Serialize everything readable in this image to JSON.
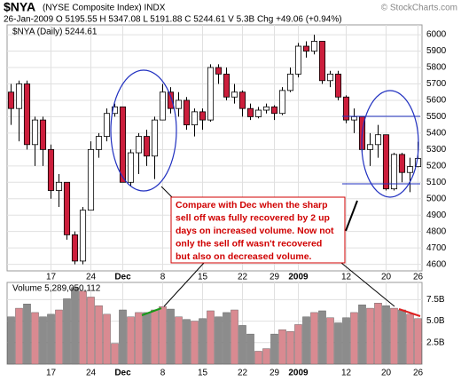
{
  "chart_data": [
    {
      "type": "candlestick",
      "title": "$NYA",
      "subtitle": "(NYSE Composite Index) INDX",
      "credit": "© StockCharts.com",
      "quote_line": "26-Jan-2009  O 5195.55  H 5347.08  L 5191.88  C 5244.61  V 5.3B  Chg +49.06 (+0.94%)",
      "legend_label": "$NYA (Daily) 5244.61",
      "annotation": [
        "Compare with Dec when the sharp",
        "sell off was fully recovered by 2 up",
        "days on increased volume. Now not",
        "only the sell off wasn't recovered",
        "but also on decreased volume."
      ],
      "up_color": "#ffffff",
      "down_color": "#cc1e3c",
      "grid": true,
      "categories": [
        null,
        null,
        null,
        null,
        null,
        "17",
        null,
        null,
        null,
        null,
        "24",
        null,
        null,
        null,
        "Dec",
        null,
        null,
        null,
        null,
        "8",
        null,
        null,
        null,
        null,
        "15",
        null,
        null,
        null,
        null,
        "22",
        null,
        null,
        null,
        "29",
        null,
        null,
        "2009",
        null,
        null,
        null,
        null,
        null,
        "12",
        null,
        null,
        null,
        null,
        "20",
        null,
        null,
        null,
        "26"
      ],
      "open": [
        5650,
        5550,
        5700,
        5330,
        5480,
        5300,
        5050,
        5100,
        4780,
        4620,
        4930,
        5300,
        5380,
        5520,
        5560,
        5100,
        5280,
        5380,
        5260,
        5480,
        5650,
        5550,
        5600,
        5450,
        5530,
        5480,
        5800,
        5760,
        5620,
        5650,
        5550,
        5500,
        5540,
        5560,
        5520,
        5660,
        5760,
        5930,
        5900,
        5960,
        5720,
        5760,
        5620,
        5480,
        5500,
        5300,
        5330,
        5390,
        5060,
        5270,
        5160,
        5195.55
      ],
      "high": [
        5700,
        5720,
        5720,
        5500,
        5500,
        5330,
        5150,
        5100,
        4800,
        4950,
        5350,
        5400,
        5550,
        5580,
        5560,
        5300,
        5400,
        5420,
        5500,
        5700,
        5680,
        5650,
        5620,
        5550,
        5550,
        5820,
        5820,
        5800,
        5700,
        5660,
        5580,
        5560,
        5580,
        5570,
        5680,
        5800,
        5950,
        5960,
        6000,
        5960,
        5780,
        5780,
        5630,
        5550,
        5500,
        5400,
        5450,
        5390,
        5280,
        5280,
        5250,
        5347.08
      ],
      "low": [
        5450,
        5350,
        5300,
        5200,
        5200,
        5000,
        4950,
        4750,
        4600,
        4600,
        4930,
        5250,
        5350,
        5500,
        5100,
        5080,
        5150,
        5200,
        5120,
        5480,
        5520,
        5500,
        5420,
        5380,
        5420,
        5470,
        5700,
        5600,
        5580,
        5500,
        5480,
        5490,
        5520,
        5480,
        5510,
        5650,
        5740,
        5860,
        5880,
        5700,
        5680,
        5600,
        5460,
        5400,
        5280,
        5200,
        5250,
        5050,
        5050,
        5100,
        5040,
        5191.88
      ],
      "close": [
        5550,
        5700,
        5330,
        5480,
        5300,
        5050,
        5100,
        4780,
        4620,
        4930,
        5300,
        5380,
        5520,
        5560,
        5100,
        5280,
        5380,
        5260,
        5480,
        5650,
        5550,
        5600,
        5450,
        5530,
        5480,
        5800,
        5760,
        5620,
        5650,
        5550,
        5500,
        5540,
        5560,
        5520,
        5660,
        5760,
        5930,
        5900,
        5960,
        5720,
        5760,
        5620,
        5480,
        5500,
        5300,
        5330,
        5390,
        5060,
        5270,
        5160,
        5195.55,
        5244.61
      ],
      "ylim": [
        4560,
        6060
      ],
      "yticks": [
        4600,
        4700,
        4800,
        4900,
        5000,
        5100,
        5200,
        5300,
        5400,
        5500,
        5600,
        5700,
        5800,
        5900,
        6000
      ]
    },
    {
      "type": "bar",
      "title": "Volume 5,289,050,112",
      "up_color": "#d98a91",
      "down_color": "#8c8c8c",
      "grid": true,
      "categories": [
        null,
        null,
        null,
        null,
        null,
        "17",
        null,
        null,
        null,
        null,
        "24",
        null,
        null,
        null,
        "Dec",
        null,
        null,
        null,
        null,
        "8",
        null,
        null,
        null,
        null,
        "15",
        null,
        null,
        null,
        null,
        "22",
        null,
        null,
        null,
        "29",
        null,
        null,
        "2009",
        null,
        null,
        null,
        null,
        null,
        "12",
        null,
        null,
        null,
        null,
        "20",
        null,
        null,
        null,
        "26"
      ],
      "values": [
        5.5,
        6.5,
        7.0,
        6.0,
        5.5,
        5.8,
        6.3,
        7.6,
        8.9,
        8.5,
        7.8,
        6.8,
        5.8,
        2.4,
        6.3,
        5.5,
        6.0,
        6.0,
        6.3,
        6.7,
        6.4,
        5.5,
        5.2,
        5.0,
        5.3,
        6.2,
        5.5,
        6.0,
        6.3,
        4.5,
        3.5,
        1.5,
        1.8,
        3.5,
        4.0,
        3.8,
        4.6,
        5.5,
        6.0,
        6.2,
        5.4,
        4.8,
        5.4,
        6.0,
        6.9,
        6.5,
        7.1,
        6.8,
        6.5,
        6.3,
        5.8,
        5.29
      ],
      "ylim": [
        0,
        9.5
      ],
      "yticks": [
        {
          "value": 2.5,
          "label": "2.5B"
        },
        {
          "value": 5.0,
          "label": "5.0B"
        },
        {
          "value": 7.5,
          "label": "7.5B"
        }
      ]
    }
  ]
}
